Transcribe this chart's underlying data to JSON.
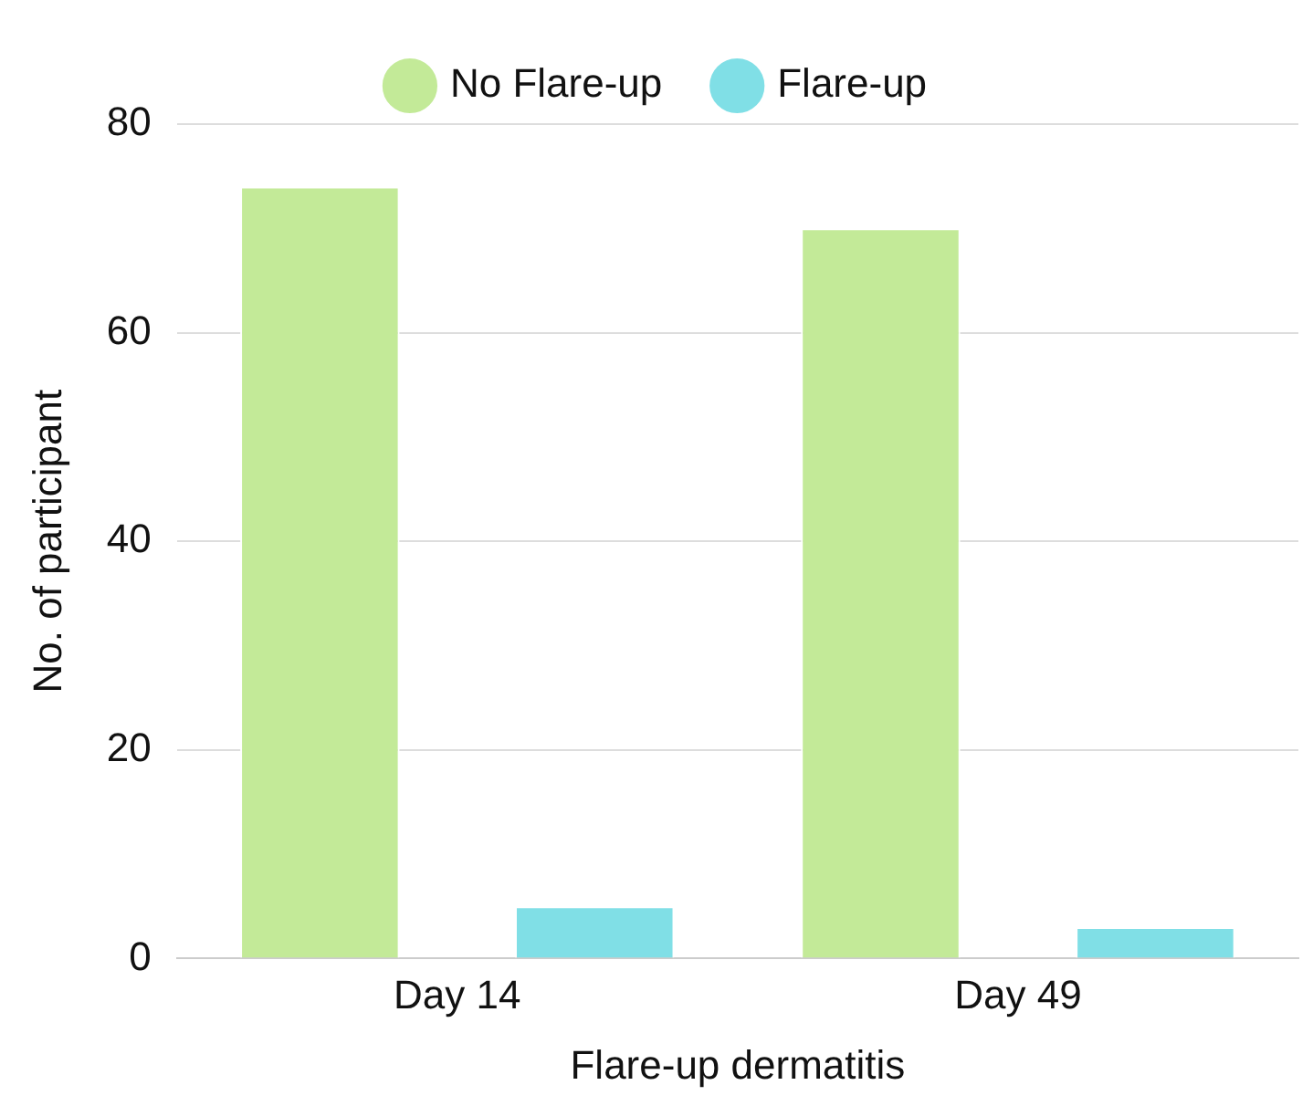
{
  "chart_data": {
    "type": "bar",
    "xlabel": "Flare-up dermatitis",
    "ylabel": "No. of participant",
    "categories": [
      "Day 14",
      "Day 49"
    ],
    "series": [
      {
        "name": "No Flare-up",
        "color": "#c3ea98",
        "values": [
          74,
          70
        ]
      },
      {
        "name": "Flare-up",
        "color": "#80dfe6",
        "values": [
          5,
          3
        ]
      }
    ],
    "ylim": [
      0,
      80
    ],
    "yticks": [
      0,
      20,
      40,
      60,
      80
    ],
    "grid": "y",
    "legend": "top"
  }
}
